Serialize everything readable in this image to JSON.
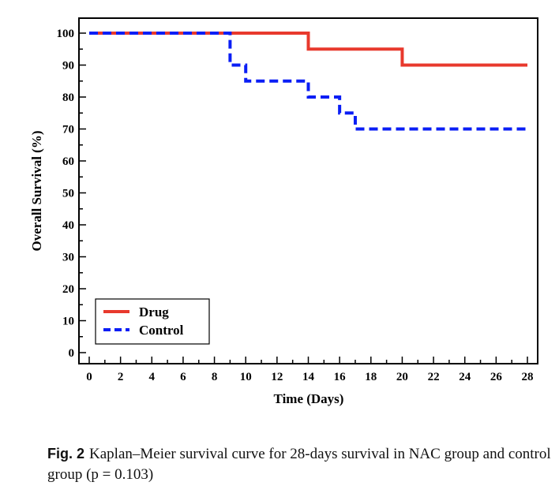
{
  "chart_data": {
    "type": "line",
    "step": true,
    "xlabel": "Time (Days)",
    "ylabel": "Overall Survival (%)",
    "xlim": [
      0,
      28
    ],
    "ylim": [
      0,
      100
    ],
    "xticks": [
      0,
      2,
      4,
      6,
      8,
      10,
      12,
      14,
      16,
      18,
      20,
      22,
      24,
      26,
      28
    ],
    "yticks": [
      0,
      10,
      20,
      30,
      40,
      50,
      60,
      70,
      80,
      90,
      100
    ],
    "legend_position": "bottom-left",
    "series": [
      {
        "name": "Drug",
        "color": "#e8392d",
        "style": "solid",
        "x": [
          0,
          14,
          20,
          28
        ],
        "y": [
          100,
          95,
          90,
          90
        ]
      },
      {
        "name": "Control",
        "color": "#0a1ef5",
        "style": "dashed",
        "x": [
          0,
          9,
          10,
          14,
          16,
          17,
          28
        ],
        "y": [
          100,
          90,
          85,
          80,
          75,
          70,
          70
        ]
      }
    ]
  },
  "caption": {
    "label": "Fig. 2",
    "text": "Kaplan–Meier survival curve for 28-days survival in NAC group and control group (p = 0.103)"
  }
}
